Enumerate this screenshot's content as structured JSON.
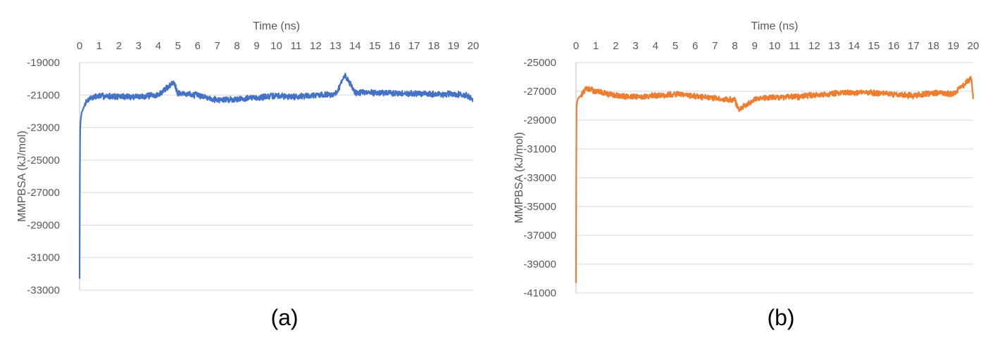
{
  "chart_data": [
    {
      "type": "line",
      "caption": "(a)",
      "xlabel": "Time (ns)",
      "ylabel": "MMPBSA (kJ/mol)",
      "xlim": [
        0,
        20
      ],
      "ylim": [
        -33000,
        -19000
      ],
      "x_ticks": [
        "0",
        "1",
        "2",
        "3",
        "4",
        "5",
        "6",
        "7",
        "8",
        "9",
        "10",
        "11",
        "12",
        "13",
        "14",
        "15",
        "16",
        "17",
        "18",
        "19",
        "20"
      ],
      "y_ticks": [
        "-19000",
        "-21000",
        "-23000",
        "-25000",
        "-27000",
        "-29000",
        "-31000",
        "-33000"
      ],
      "x_axis_position": "top",
      "grid": "horizontal",
      "legend": "none",
      "color": "#4472c4",
      "series": [
        {
          "x": [
            0,
            0.02,
            0.05,
            0.1,
            0.2,
            0.3,
            0.5,
            1,
            2,
            3,
            4,
            4.8,
            5,
            6,
            7,
            8,
            9,
            10,
            11,
            12,
            13,
            13.5,
            14,
            15,
            16,
            17,
            18,
            19,
            19.7,
            20
          ],
          "y": [
            -32300,
            -23500,
            -22600,
            -22100,
            -21800,
            -21500,
            -21200,
            -21050,
            -21100,
            -21100,
            -21000,
            -20200,
            -20900,
            -21000,
            -21300,
            -21250,
            -21150,
            -21050,
            -21100,
            -21000,
            -20950,
            -19800,
            -20850,
            -20850,
            -20900,
            -20900,
            -20950,
            -20950,
            -21000,
            -21400
          ]
        }
      ]
    },
    {
      "type": "line",
      "caption": "(b)",
      "xlabel": "Time (ns)",
      "ylabel": "MMPBSA (kJ/mol)",
      "xlim": [
        0,
        20
      ],
      "ylim": [
        -41000,
        -25000
      ],
      "x_ticks": [
        "0",
        "1",
        "2",
        "3",
        "4",
        "5",
        "6",
        "7",
        "8",
        "9",
        "10",
        "11",
        "12",
        "13",
        "14",
        "15",
        "16",
        "17",
        "18",
        "19",
        "20"
      ],
      "y_ticks": [
        "-25000",
        "-27000",
        "-29000",
        "-31000",
        "-33000",
        "-35000",
        "-37000",
        "-39000",
        "-41000"
      ],
      "x_axis_position": "top",
      "grid": "horizontal",
      "legend": "none",
      "color": "#ed7d31",
      "series": [
        {
          "x": [
            0,
            0.02,
            0.05,
            0.1,
            0.3,
            0.5,
            1,
            2,
            3,
            4,
            5,
            6,
            7,
            8,
            8.2,
            9,
            10,
            11,
            12,
            13,
            14,
            15,
            16,
            17,
            18,
            19,
            19.9,
            20
          ],
          "y": [
            -40300,
            -28200,
            -27800,
            -27500,
            -27200,
            -26800,
            -27000,
            -27300,
            -27400,
            -27300,
            -27200,
            -27350,
            -27500,
            -27600,
            -28300,
            -27500,
            -27400,
            -27400,
            -27250,
            -27150,
            -27100,
            -27100,
            -27200,
            -27300,
            -27100,
            -27200,
            -26100,
            -27400
          ]
        }
      ]
    }
  ]
}
